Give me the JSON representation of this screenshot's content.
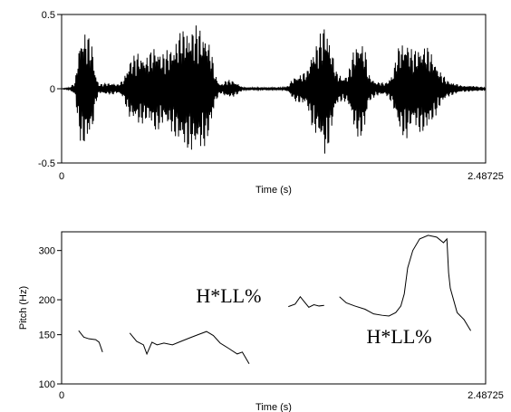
{
  "chart_data": [
    {
      "type": "line",
      "title": "",
      "xlabel": "Time (s)",
      "ylabel": "",
      "xlim": [
        0,
        2.48725
      ],
      "ylim": [
        -0.5,
        0.5
      ],
      "x_ticks": [
        "0",
        "2.48725"
      ],
      "y_ticks": [
        "0.5",
        "0",
        "-0.5"
      ],
      "series": [
        {
          "envelope": [
            [
              0.0,
              0.0
            ],
            [
              0.05,
              0.01
            ],
            [
              0.08,
              0.05
            ],
            [
              0.1,
              0.3
            ],
            [
              0.12,
              0.4
            ],
            [
              0.15,
              0.38
            ],
            [
              0.18,
              0.3
            ],
            [
              0.2,
              0.1
            ],
            [
              0.22,
              0.03
            ],
            [
              0.26,
              0.04
            ],
            [
              0.3,
              0.04
            ],
            [
              0.33,
              0.03
            ],
            [
              0.36,
              0.06
            ],
            [
              0.4,
              0.2
            ],
            [
              0.45,
              0.25
            ],
            [
              0.5,
              0.22
            ],
            [
              0.55,
              0.3
            ],
            [
              0.6,
              0.24
            ],
            [
              0.65,
              0.3
            ],
            [
              0.7,
              0.4
            ],
            [
              0.75,
              0.42
            ],
            [
              0.8,
              0.43
            ],
            [
              0.85,
              0.38
            ],
            [
              0.88,
              0.25
            ],
            [
              0.9,
              0.1
            ],
            [
              0.93,
              0.03
            ],
            [
              0.97,
              0.06
            ],
            [
              1.0,
              0.06
            ],
            [
              1.03,
              0.04
            ],
            [
              1.06,
              0.01
            ],
            [
              1.1,
              0.01
            ],
            [
              1.2,
              0.01
            ],
            [
              1.3,
              0.01
            ],
            [
              1.33,
              0.02
            ],
            [
              1.36,
              0.08
            ],
            [
              1.4,
              0.1
            ],
            [
              1.44,
              0.12
            ],
            [
              1.46,
              0.22
            ],
            [
              1.48,
              0.3
            ],
            [
              1.5,
              0.32
            ],
            [
              1.52,
              0.38
            ],
            [
              1.55,
              0.48
            ],
            [
              1.58,
              0.3
            ],
            [
              1.61,
              0.12
            ],
            [
              1.65,
              0.08
            ],
            [
              1.68,
              0.1
            ],
            [
              1.72,
              0.3
            ],
            [
              1.75,
              0.35
            ],
            [
              1.78,
              0.28
            ],
            [
              1.8,
              0.1
            ],
            [
              1.84,
              0.05
            ],
            [
              1.9,
              0.04
            ],
            [
              1.94,
              0.1
            ],
            [
              1.98,
              0.3
            ],
            [
              2.02,
              0.35
            ],
            [
              2.06,
              0.25
            ],
            [
              2.1,
              0.3
            ],
            [
              2.14,
              0.3
            ],
            [
              2.18,
              0.22
            ],
            [
              2.22,
              0.12
            ],
            [
              2.26,
              0.06
            ],
            [
              2.3,
              0.04
            ],
            [
              2.35,
              0.02
            ],
            [
              2.4,
              0.02
            ],
            [
              2.48725,
              0.01
            ]
          ]
        }
      ]
    },
    {
      "type": "line",
      "title": "",
      "xlabel": "Time (s)",
      "ylabel": "Pitch (Hz)",
      "xlim": [
        0,
        2.48725
      ],
      "ylim": [
        100,
        350
      ],
      "y_scale": "log",
      "x_ticks": [
        "0",
        "2.48725"
      ],
      "y_ticks": [
        100,
        150,
        200,
        300
      ],
      "y_tick_labels": [
        "100",
        "150",
        "200",
        "300"
      ],
      "series": [
        {
          "segments": [
            [
              [
                0.1,
                155
              ],
              [
                0.13,
                147
              ],
              [
                0.16,
                145
              ],
              [
                0.2,
                144
              ],
              [
                0.22,
                141
              ],
              [
                0.24,
                130
              ]
            ],
            [
              [
                0.4,
                152
              ],
              [
                0.44,
                142
              ],
              [
                0.48,
                138
              ],
              [
                0.5,
                128
              ],
              [
                0.53,
                141
              ],
              [
                0.56,
                138
              ],
              [
                0.6,
                140
              ],
              [
                0.65,
                138
              ],
              [
                0.7,
                142
              ],
              [
                0.75,
                146
              ],
              [
                0.8,
                150
              ],
              [
                0.85,
                154
              ],
              [
                0.89,
                149
              ],
              [
                0.93,
                140
              ],
              [
                0.98,
                134
              ],
              [
                1.03,
                128
              ],
              [
                1.06,
                130
              ],
              [
                1.1,
                118
              ]
            ],
            [
              [
                1.33,
                189
              ],
              [
                1.37,
                193
              ],
              [
                1.4,
                205
              ],
              [
                1.42,
                198
              ],
              [
                1.45,
                188
              ],
              [
                1.48,
                192
              ],
              [
                1.51,
                190
              ],
              [
                1.54,
                191
              ]
            ],
            [
              [
                1.63,
                205
              ],
              [
                1.67,
                195
              ],
              [
                1.72,
                190
              ],
              [
                1.78,
                185
              ],
              [
                1.83,
                178
              ],
              [
                1.88,
                176
              ],
              [
                1.92,
                175
              ],
              [
                1.96,
                180
              ],
              [
                1.99,
                190
              ],
              [
                2.01,
                210
              ],
              [
                2.03,
                260
              ],
              [
                2.06,
                300
              ],
              [
                2.1,
                330
              ],
              [
                2.15,
                340
              ],
              [
                2.2,
                335
              ],
              [
                2.24,
                320
              ],
              [
                2.26,
                330
              ],
              [
                2.27,
                250
              ],
              [
                2.28,
                220
              ],
              [
                2.32,
                180
              ],
              [
                2.36,
                170
              ],
              [
                2.4,
                155
              ]
            ]
          ]
        }
      ],
      "annotations": [
        {
          "text": "H*LL%",
          "x": 0.98,
          "y": 196
        },
        {
          "text": "H*LL%",
          "x": 1.98,
          "y": 140
        }
      ]
    }
  ]
}
